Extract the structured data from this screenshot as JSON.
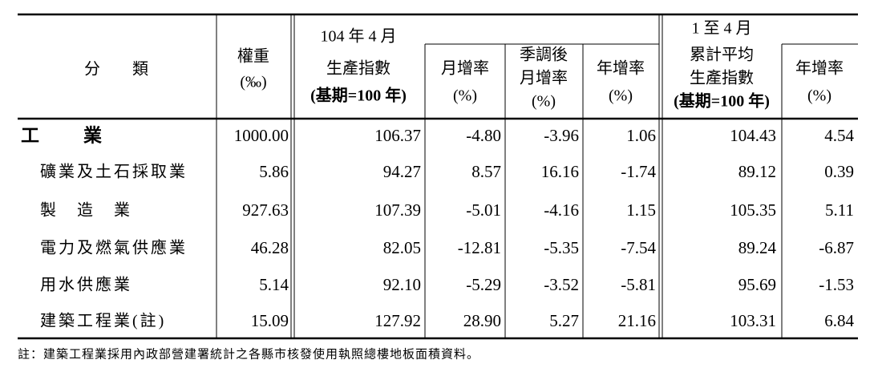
{
  "header": {
    "category": "分　　類",
    "weight": [
      "權重",
      "(‰)"
    ],
    "current_month": "104 年 4 月",
    "current_index": [
      "生產指數",
      "(基期=100 年)"
    ],
    "mom": [
      "月增率",
      "(%)"
    ],
    "sa_mom": [
      "季調後",
      "月增率",
      "(%)"
    ],
    "yoy": [
      "年增率",
      "(%)"
    ],
    "cumulative": "1 至 4 月",
    "cum_index": [
      "累計平均",
      "生產指數",
      "(基期=100 年)"
    ],
    "cum_yoy": [
      "年增率",
      "(%)"
    ]
  },
  "rows": [
    [
      "工　　業",
      "1000.00",
      "106.37",
      "-4.80",
      "-3.96",
      "1.06",
      "104.43",
      "4.54"
    ],
    [
      "礦業及土石採取業",
      "5.86",
      "94.27",
      "8.57",
      "16.16",
      "-1.74",
      "89.12",
      "0.39"
    ],
    [
      "製　造　業",
      "927.63",
      "107.39",
      "-5.01",
      "-4.16",
      "1.15",
      "105.35",
      "5.11"
    ],
    [
      "電力及燃氣供應業",
      "46.28",
      "82.05",
      "-12.81",
      "-5.35",
      "-7.54",
      "89.24",
      "-6.87"
    ],
    [
      "用水供應業",
      "5.14",
      "92.10",
      "-5.29",
      "-3.52",
      "-5.81",
      "95.69",
      "-1.53"
    ],
    [
      "建築工程業(註)",
      "15.09",
      "127.92",
      "28.90",
      "5.27",
      "21.16",
      "103.31",
      "6.84"
    ]
  ],
  "note": "註：建築工程業採用內政部營建署統計之各縣市核發使用執照總樓地板面積資料。"
}
